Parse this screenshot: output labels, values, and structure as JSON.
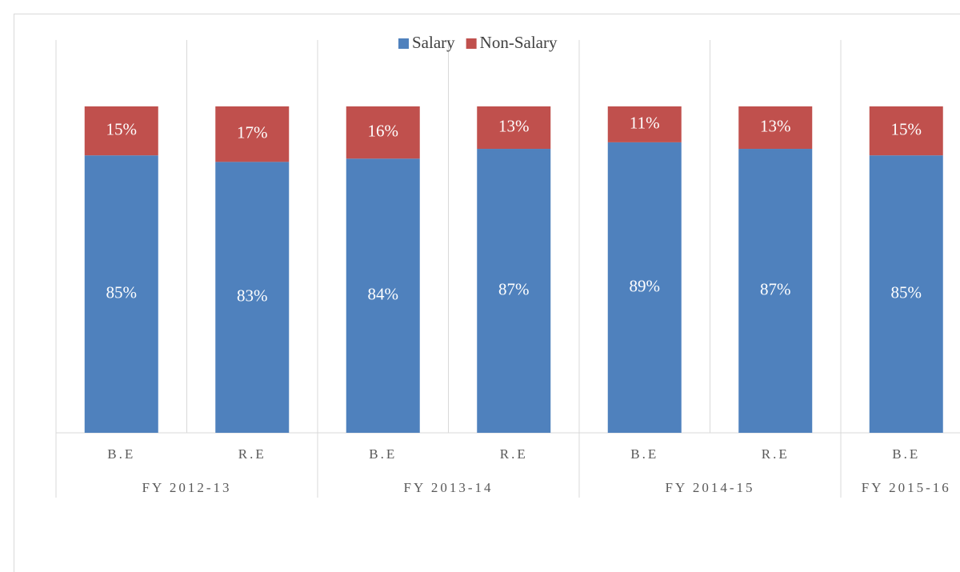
{
  "chart_data": {
    "type": "stacked_bar",
    "categories": [
      "B.E",
      "R.E",
      "B.E",
      "R.E",
      "B.E",
      "R.E",
      "B.E"
    ],
    "groups": [
      {
        "label": "FY 2012-13",
        "count": 2
      },
      {
        "label": "FY 2013-14",
        "count": 2
      },
      {
        "label": "FY 2014-15",
        "count": 2
      },
      {
        "label": "FY 2015-16",
        "count": 1
      }
    ],
    "series": [
      {
        "name": "Salary",
        "color": "#4f81bd",
        "values": [
          85,
          83,
          84,
          87,
          89,
          87,
          85
        ],
        "value_labels": [
          "85%",
          "83%",
          "84%",
          "87%",
          "89%",
          "87%",
          "85%"
        ]
      },
      {
        "name": "Non-Salary",
        "color": "#c0504d",
        "values": [
          15,
          17,
          16,
          13,
          11,
          13,
          15
        ],
        "value_labels": [
          "15%",
          "17%",
          "16%",
          "13%",
          "11%",
          "13%",
          "15%"
        ]
      }
    ],
    "legend": "top"
  }
}
